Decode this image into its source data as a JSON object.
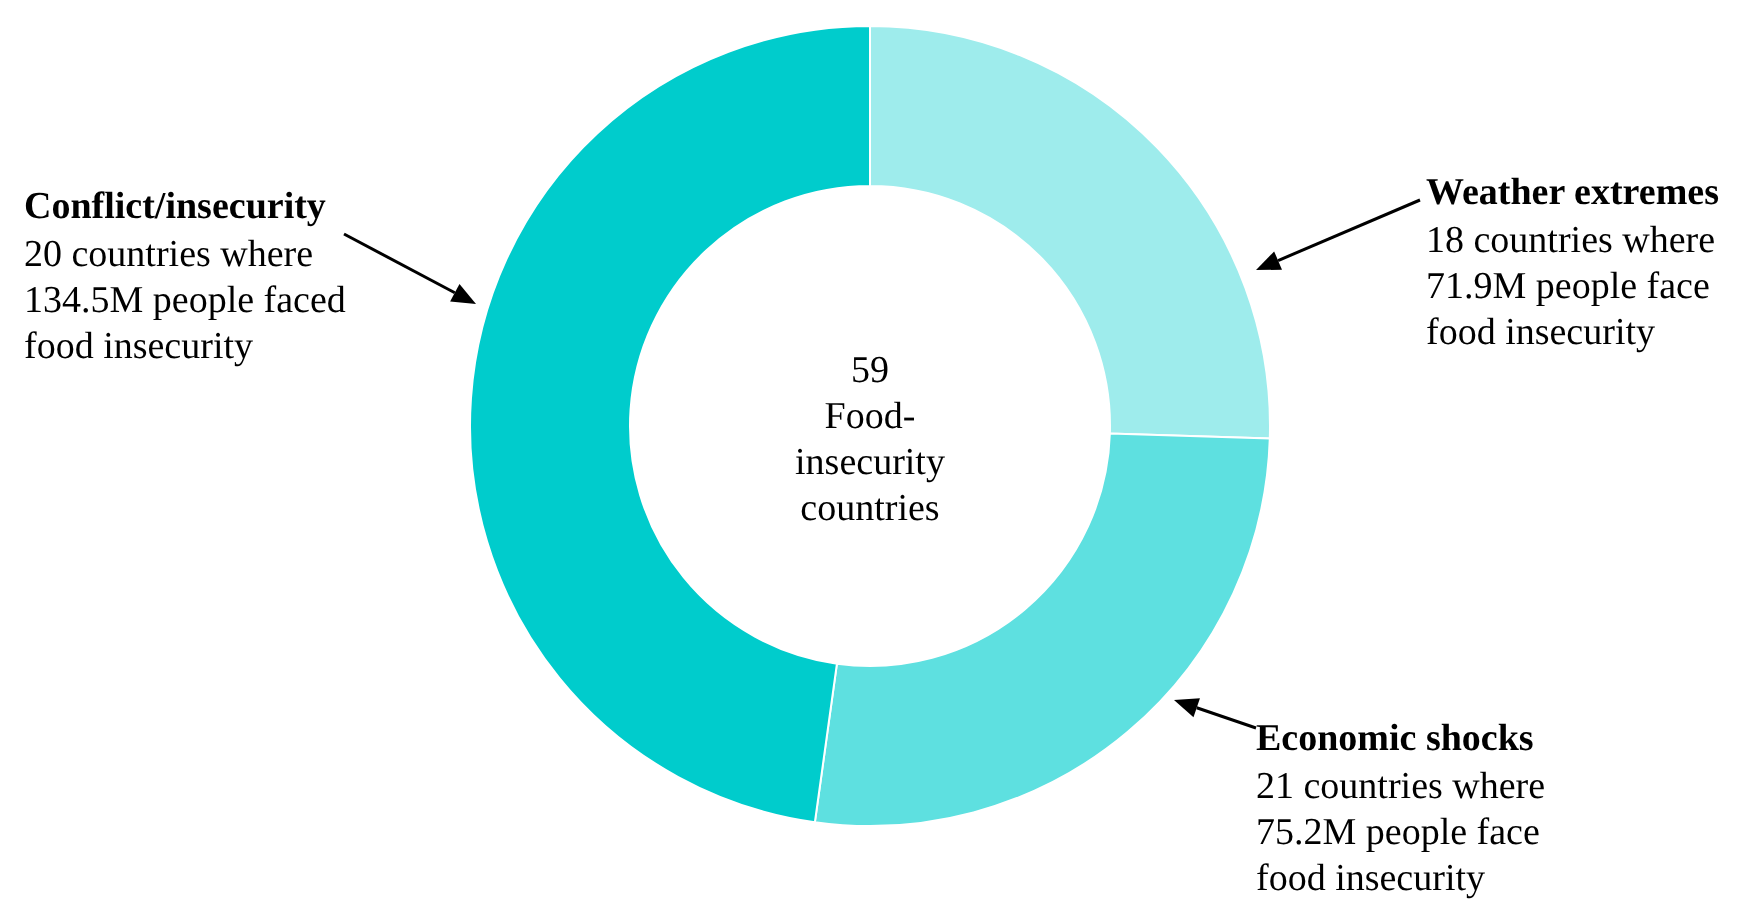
{
  "chart_data": {
    "type": "donut",
    "categories": [
      "Weather extremes",
      "Economic shocks",
      "Conflict/insecurity"
    ],
    "values": [
      25.5,
      26.7,
      47.8
    ],
    "colors": [
      "#9eecec",
      "#5ee0e0",
      "#00cccc"
    ],
    "annotations": [
      "18 countries where\n71.9M people face\nfood insecurity",
      "21 countries where\n75.2M people face\nfood insecurity",
      "20 countries where\n134.5M people faced\nfood insecurity",
      "59\nFood-\ninsecurity\ncountries"
    ]
  }
}
